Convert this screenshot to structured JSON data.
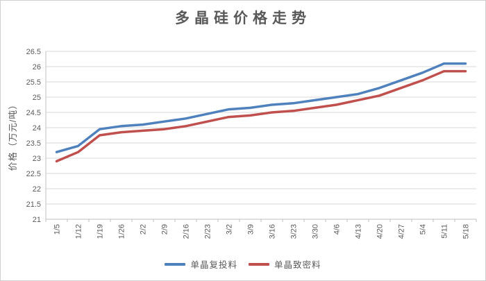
{
  "frame": {
    "background": "#ffffff",
    "border_color": "#cfcfcf"
  },
  "style": {
    "title_color": "#595959",
    "axis_text_color": "#595959",
    "gridline_color": "#d9d9d9",
    "axis_line_color": "#bfbfbf"
  },
  "chart_data": {
    "type": "line",
    "title": "多晶硅价格走势",
    "ylabel": "价格（万元/吨）",
    "xlabel": "",
    "ylim": [
      21,
      26.5
    ],
    "ytick_step": 0.5,
    "grid": true,
    "legend_position": "bottom",
    "x_label_rotation": -90,
    "categories": [
      "1/5",
      "1/12",
      "1/19",
      "1/26",
      "2/2",
      "2/9",
      "2/16",
      "2/23",
      "3/2",
      "3/9",
      "3/16",
      "3/23",
      "3/30",
      "4/6",
      "4/13",
      "4/20",
      "4/27",
      "5/4",
      "5/11",
      "5/18"
    ],
    "series": [
      {
        "name": "单晶复投料",
        "color": "#4f81bd",
        "values": [
          23.2,
          23.4,
          23.95,
          24.05,
          24.1,
          24.2,
          24.3,
          24.45,
          24.6,
          24.65,
          24.75,
          24.8,
          24.9,
          25.0,
          25.1,
          25.3,
          25.55,
          25.8,
          26.1,
          26.1
        ]
      },
      {
        "name": "单晶致密料",
        "color": "#c0504d",
        "values": [
          22.9,
          23.2,
          23.75,
          23.85,
          23.9,
          23.95,
          24.05,
          24.2,
          24.35,
          24.4,
          24.5,
          24.55,
          24.65,
          24.75,
          24.9,
          25.05,
          25.3,
          25.55,
          25.85,
          25.85
        ]
      }
    ]
  }
}
